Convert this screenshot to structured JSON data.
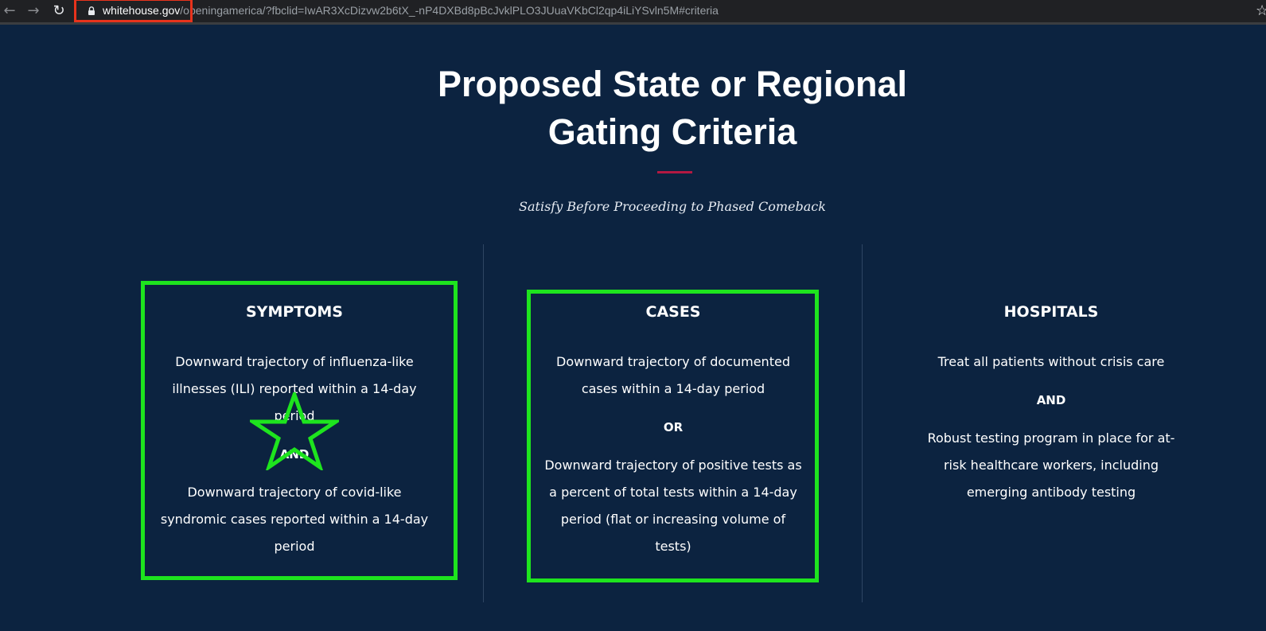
{
  "browser": {
    "url_domain": "whitehouse.gov",
    "url_path": "/openingamerica/?fbclid=IwAR3XcDizvw2b6tX_-nP4DXBd8pBcJvklPLO3JUuaVKbCl2qp4iLiYSvln5M#criteria",
    "back_icon": "←",
    "forward_icon": "→",
    "reload_icon": "↻",
    "bookmark_icon": "☆"
  },
  "page": {
    "title_line1": "Proposed State or Regional",
    "title_line2": "Gating Criteria",
    "subtitle": "Satisfy Before Proceeding to Phased Comeback",
    "accent_color": "#b31942",
    "background_color": "#0c2340"
  },
  "columns": [
    {
      "heading": "SYMPTOMS",
      "text1": "Downward trajectory of influenza-like illnesses (ILI) reported within a 14-day period",
      "connector": "AND",
      "text2": "Downward trajectory of covid-like syndromic cases reported within a 14-day period"
    },
    {
      "heading": "CASES",
      "text1": "Downward trajectory of documented cases within a 14-day period",
      "connector": "OR",
      "text2": "Downward trajectory of positive tests as a percent of total tests within a 14-day period (flat or increasing volume of tests)"
    },
    {
      "heading": "HOSPITALS",
      "text1": "Treat all patients without crisis care",
      "connector": "AND",
      "text2": "Robust testing program in place for at-risk healthcare workers, including emerging antibody testing"
    }
  ],
  "annotations": {
    "highlight_color": "#1ee41e",
    "domain_box_color": "#e8331c"
  }
}
